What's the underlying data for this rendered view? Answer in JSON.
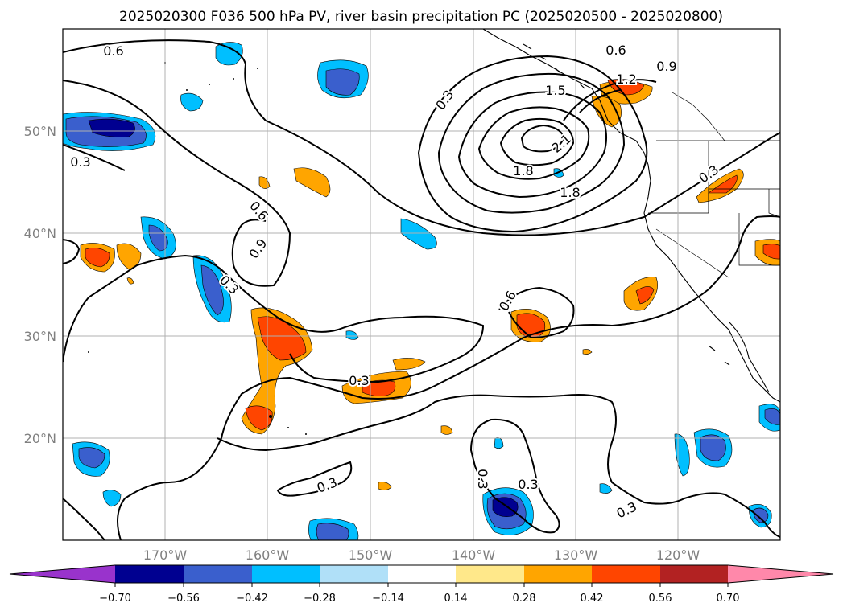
{
  "title": "2025020300 F036 500 hPa PV, river basin precipitation PC (2025020500 - 2025020800)",
  "map": {
    "lon_labels": [
      "170°W",
      "160°W",
      "150°W",
      "140°W",
      "130°W",
      "120°W"
    ],
    "lat_labels": [
      "50°N",
      "40°N",
      "30°N",
      "20°N"
    ],
    "contour_labels": [
      "0.6",
      "0.6",
      "0.9",
      "1.2",
      "1.5",
      "2.1",
      "1.8",
      "1.8",
      "0.3",
      "0.3",
      "0.6",
      "0.9",
      "0.3",
      "0.3",
      "0.6",
      "0.3",
      "0.3",
      "0.3",
      "0.3",
      "0.3",
      "0.3"
    ]
  },
  "colorbar": {
    "ticks": [
      "−0.70",
      "−0.56",
      "−0.42",
      "−0.28",
      "−0.14",
      "0.14",
      "0.28",
      "0.42",
      "0.56",
      "0.70"
    ],
    "colors": [
      "#9933cc",
      "#000090",
      "#3a5fcd",
      "#00bfff",
      "#b0e0f8",
      "#ffffff",
      "#ffe88a",
      "#ffa500",
      "#ff4500",
      "#b22222",
      "#ff88aa"
    ]
  }
}
